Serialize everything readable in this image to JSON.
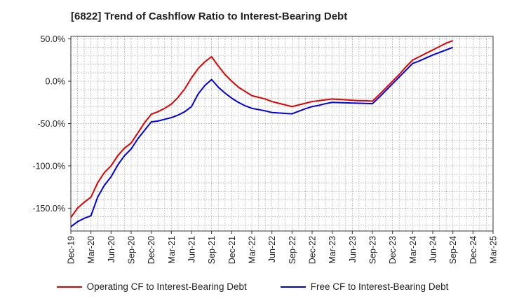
{
  "chart_data": {
    "type": "line",
    "title": "[6822]  Trend of Cashflow Ratio to Interest-Bearing Debt",
    "xlabel": "",
    "ylabel": "",
    "x": [
      "Dec-19",
      "Jan-20",
      "Feb-20",
      "Mar-20",
      "Apr-20",
      "May-20",
      "Jun-20",
      "Jul-20",
      "Aug-20",
      "Sep-20",
      "Oct-20",
      "Nov-20",
      "Dec-20",
      "Jan-21",
      "Feb-21",
      "Mar-21",
      "Apr-21",
      "May-21",
      "Jun-21",
      "Jul-21",
      "Aug-21",
      "Sep-21",
      "Oct-21",
      "Nov-21",
      "Dec-21",
      "Jan-22",
      "Feb-22",
      "Mar-22",
      "Apr-22",
      "May-22",
      "Jun-22",
      "Jul-22",
      "Aug-22",
      "Sep-22",
      "Oct-22",
      "Nov-22",
      "Dec-22",
      "Jan-23",
      "Feb-23",
      "Mar-23",
      "Apr-23",
      "May-23",
      "Jun-23",
      "Jul-23",
      "Aug-23",
      "Sep-23",
      "Oct-23",
      "Nov-23",
      "Dec-23",
      "Jan-24",
      "Feb-24",
      "Mar-24",
      "Apr-24",
      "May-24",
      "Jun-24",
      "Jul-24",
      "Aug-24",
      "Sep-24"
    ],
    "x_ticks": [
      "Dec-19",
      "Mar-20",
      "Jun-20",
      "Sep-20",
      "Dec-20",
      "Mar-21",
      "Jun-21",
      "Sep-21",
      "Dec-21",
      "Mar-22",
      "Jun-22",
      "Sep-22",
      "Dec-22",
      "Mar-23",
      "Jun-23",
      "Sep-23",
      "Dec-23",
      "Mar-24",
      "Jun-24",
      "Sep-24",
      "Dec-24",
      "Mar-25"
    ],
    "x_range": [
      "Dec-19",
      "Mar-25"
    ],
    "y_ticks": [
      50,
      0,
      -50,
      -100,
      -150
    ],
    "y_tick_labels": [
      "50.0%",
      "0.0%",
      "-50.0%",
      "-100.0%",
      "-150.0%"
    ],
    "ylim": [
      -177,
      53
    ],
    "grid": true,
    "legend_position": "bottom",
    "series": [
      {
        "name": "Operating CF to Interest-Bearing Debt",
        "color": "#e00000",
        "values": [
          -161,
          -150,
          -143,
          -137,
          -120,
          -108,
          -100,
          -88,
          -79,
          -73,
          -61,
          -49,
          -39,
          -36,
          -32,
          -27,
          -19,
          -9,
          4,
          15,
          23,
          29,
          18,
          8,
          0,
          -7,
          -12,
          -17,
          -19,
          -21,
          -24,
          -26,
          -28,
          -30,
          -28,
          -26,
          -24,
          -23,
          -22,
          -21,
          -21.5,
          -22,
          -22.5,
          -23,
          -23,
          -23.5,
          -16,
          -8,
          0,
          8,
          17,
          25,
          29,
          33,
          37,
          41,
          45,
          48
        ]
      },
      {
        "name": "Free CF to Interest-Bearing Debt",
        "color": "#0000e0",
        "values": [
          -172,
          -166,
          -162,
          -159,
          -137,
          -123,
          -113,
          -99,
          -88,
          -80,
          -68,
          -58,
          -48,
          -47,
          -45,
          -43,
          -40,
          -36,
          -30,
          -15,
          -5,
          2,
          -7,
          -14,
          -20,
          -25,
          -29,
          -32,
          -33.5,
          -35,
          -37,
          -37.5,
          -38,
          -38.5,
          -35.5,
          -32.5,
          -30,
          -28.5,
          -26.5,
          -25,
          -25.3,
          -25.5,
          -25.8,
          -26,
          -26.2,
          -26.5,
          -19,
          -11,
          -3,
          5,
          13,
          21,
          24,
          27.5,
          31,
          34,
          37,
          40
        ]
      }
    ]
  }
}
